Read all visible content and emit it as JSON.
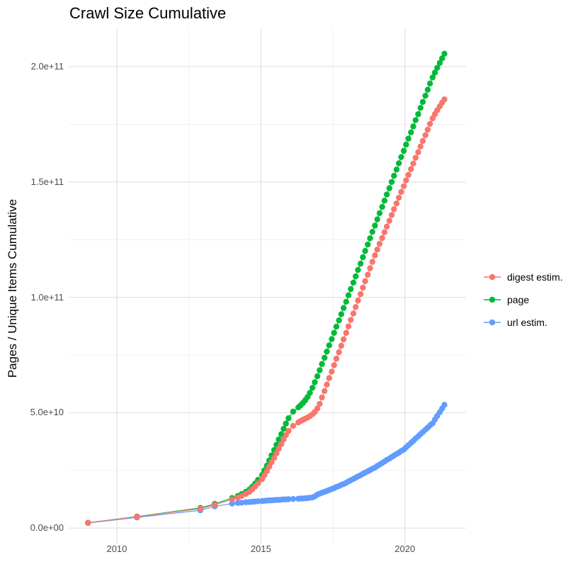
{
  "title": "Crawl Size Cumulative",
  "axes": {
    "y_label": "Pages / Unique Items Cumulative",
    "x_tick_labels": [
      "2010",
      "2015",
      "2020"
    ],
    "y_tick_labels": [
      "0.0e+00",
      "5.0e+10",
      "1.0e+11",
      "1.5e+11",
      "2.0e+11"
    ]
  },
  "colors": {
    "digest": "#F8766D",
    "page": "#00BA38",
    "url": "#619CFF",
    "grid_major": "#e2e2e2",
    "grid_minor": "#f0f0f0",
    "tick_text": "#4d4d4d",
    "title_text": "#000000"
  },
  "chart_data": {
    "type": "scatter",
    "title": "Crawl Size Cumulative",
    "xlabel": "",
    "ylabel": "Pages / Unique Items Cumulative",
    "grid": true,
    "legend_position": "right",
    "values_unit": "billions (1e9)",
    "xlim": [
      2008.33,
      2022.12
    ],
    "ylim_e9": [
      -7,
      216.6
    ],
    "x_ticks": [
      2010,
      2015,
      2020
    ],
    "x_tick_labels": [
      "2010",
      "2015",
      "2020"
    ],
    "x_minor_ticks": [
      2012.5,
      2017.5
    ],
    "y_ticks_e9": [
      0,
      50,
      100,
      150,
      200
    ],
    "y_tick_labels": [
      "0.0e+00",
      "5.0e+10",
      "1.0e+11",
      "1.5e+11",
      "2.0e+11"
    ],
    "y_minor_ticks_e9": [
      25,
      75,
      125,
      175
    ],
    "x": [
      2009.0,
      2010.7,
      2012.9,
      2013.4,
      2014.0,
      2014.2,
      2014.33,
      2014.48,
      2014.6,
      2014.7,
      2014.8,
      2014.9,
      2015.04,
      2015.12,
      2015.21,
      2015.29,
      2015.37,
      2015.46,
      2015.54,
      2015.62,
      2015.71,
      2015.79,
      2015.87,
      2015.96,
      2016.12,
      2016.3,
      2016.38,
      2016.46,
      2016.54,
      2016.62,
      2016.7,
      2016.79,
      2016.87,
      2016.96,
      2017.04,
      2017.12,
      2017.21,
      2017.29,
      2017.37,
      2017.46,
      2017.54,
      2017.62,
      2017.71,
      2017.79,
      2017.87,
      2017.96,
      2018.04,
      2018.12,
      2018.21,
      2018.29,
      2018.37,
      2018.46,
      2018.54,
      2018.62,
      2018.71,
      2018.79,
      2018.87,
      2018.96,
      2019.04,
      2019.12,
      2019.21,
      2019.29,
      2019.37,
      2019.46,
      2019.54,
      2019.62,
      2019.71,
      2019.79,
      2019.87,
      2019.96,
      2020.04,
      2020.12,
      2020.21,
      2020.29,
      2020.37,
      2020.46,
      2020.54,
      2020.62,
      2020.71,
      2020.79,
      2020.87,
      2020.96,
      2021.04,
      2021.12,
      2021.21,
      2021.29,
      2021.37
    ],
    "series": [
      {
        "name": "digest estim.",
        "color": "#F8766D",
        "values_e9": [
          2.3,
          4.9,
          8.4,
          10.1,
          12.4,
          13.2,
          13.9,
          14.8,
          15.7,
          16.8,
          18.0,
          19.4,
          21.2,
          22.9,
          24.7,
          26.6,
          28.5,
          30.4,
          32.4,
          34.4,
          36.4,
          38.4,
          40.3,
          42.1,
          44.3,
          45.8,
          46.4,
          46.9,
          47.4,
          47.9,
          48.5,
          49.3,
          50.3,
          51.8,
          53.8,
          56.6,
          59.4,
          62.2,
          65.0,
          67.8,
          70.6,
          73.4,
          76.2,
          79.0,
          81.8,
          84.6,
          87.4,
          90.2,
          93.0,
          95.8,
          98.6,
          101.4,
          104.2,
          107.0,
          109.8,
          112.6,
          115.4,
          118.2,
          120.7,
          123.2,
          125.7,
          128.2,
          130.7,
          133.2,
          135.7,
          138.2,
          140.7,
          143.2,
          145.7,
          148.2,
          150.7,
          153.1,
          155.6,
          158.0,
          160.5,
          162.9,
          165.4,
          167.8,
          170.3,
          172.7,
          175.2,
          177.6,
          179.4,
          181.1,
          182.8,
          184.4,
          185.8
        ]
      },
      {
        "name": "page",
        "color": "#00BA38",
        "values_e9": [
          2.3,
          5.0,
          8.7,
          10.5,
          13.0,
          13.9,
          14.7,
          15.7,
          16.7,
          17.9,
          19.3,
          20.9,
          23.0,
          25.0,
          27.1,
          29.3,
          31.5,
          33.8,
          36.1,
          38.4,
          40.7,
          43.0,
          45.3,
          47.6,
          50.5,
          52.3,
          53.2,
          54.2,
          55.4,
          56.8,
          58.6,
          60.8,
          63.2,
          65.8,
          68.4,
          71.1,
          73.8,
          76.5,
          79.2,
          81.9,
          84.6,
          87.3,
          90.0,
          92.7,
          95.4,
          98.1,
          100.9,
          103.6,
          106.4,
          109.1,
          111.9,
          114.6,
          117.4,
          120.1,
          122.9,
          125.6,
          128.4,
          131.1,
          133.8,
          136.5,
          139.2,
          141.9,
          144.6,
          147.3,
          150.0,
          152.7,
          155.4,
          158.1,
          160.8,
          163.5,
          166.2,
          168.8,
          171.5,
          174.1,
          176.8,
          179.4,
          182.1,
          184.7,
          187.4,
          190.0,
          192.7,
          195.3,
          197.4,
          199.5,
          201.6,
          203.6,
          205.6
        ]
      },
      {
        "name": "url estim.",
        "color": "#619CFF",
        "values_e9": [
          2.2,
          4.6,
          7.7,
          9.4,
          10.6,
          10.9,
          11.0,
          11.2,
          11.3,
          11.4,
          11.5,
          11.6,
          11.7,
          11.8,
          11.9,
          12.0,
          12.0,
          12.1,
          12.2,
          12.2,
          12.3,
          12.4,
          12.4,
          12.5,
          12.6,
          12.7,
          12.8,
          12.8,
          12.9,
          13.0,
          13.1,
          13.3,
          13.7,
          14.5,
          14.9,
          15.3,
          15.7,
          16.1,
          16.5,
          16.9,
          17.3,
          17.8,
          18.2,
          18.7,
          19.1,
          19.6,
          20.2,
          20.7,
          21.3,
          21.8,
          22.4,
          22.9,
          23.5,
          24.0,
          24.6,
          25.1,
          25.7,
          26.2,
          26.9,
          27.5,
          28.2,
          28.8,
          29.5,
          30.1,
          30.8,
          31.4,
          32.1,
          32.7,
          33.4,
          34.0,
          35.0,
          35.9,
          36.9,
          37.8,
          38.8,
          39.7,
          40.7,
          41.6,
          42.6,
          43.5,
          44.5,
          45.4,
          47.0,
          48.6,
          50.2,
          51.8,
          53.4
        ]
      }
    ],
    "draw_order": [
      2,
      1,
      0
    ]
  }
}
